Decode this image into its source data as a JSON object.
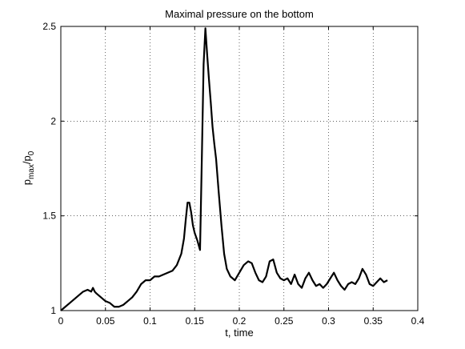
{
  "chart_data": {
    "type": "line",
    "title": "Maximal pressure on the bottom",
    "xlabel": "t, time",
    "ylabel": {
      "main": "p",
      "sub1": "max",
      "sep": "/p",
      "sub2": "0"
    },
    "xlim": [
      0,
      0.4
    ],
    "ylim": [
      1,
      2.5
    ],
    "xticks": [
      "0",
      "0.05",
      "0.1",
      "0.15",
      "0.2",
      "0.25",
      "0.3",
      "0.35",
      "0.4"
    ],
    "yticks": [
      "1",
      "1.5",
      "2",
      "2.5"
    ],
    "grid": true,
    "line_color": "#000000",
    "series": [
      {
        "x": [
          0,
          0.005,
          0.01,
          0.015,
          0.02,
          0.025,
          0.03,
          0.034,
          0.036,
          0.038,
          0.04,
          0.045,
          0.05,
          0.055,
          0.06,
          0.065,
          0.07,
          0.075,
          0.08,
          0.085,
          0.09,
          0.095,
          0.1,
          0.105,
          0.11,
          0.115,
          0.12,
          0.125,
          0.13,
          0.135,
          0.138,
          0.14,
          0.142,
          0.144,
          0.146,
          0.148,
          0.15,
          0.153,
          0.156,
          0.158,
          0.16,
          0.162,
          0.164,
          0.166,
          0.168,
          0.17,
          0.172,
          0.174,
          0.177,
          0.18,
          0.183,
          0.186,
          0.19,
          0.195,
          0.2,
          0.205,
          0.21,
          0.214,
          0.218,
          0.222,
          0.226,
          0.23,
          0.234,
          0.238,
          0.242,
          0.246,
          0.25,
          0.254,
          0.258,
          0.262,
          0.266,
          0.27,
          0.274,
          0.278,
          0.282,
          0.286,
          0.29,
          0.294,
          0.298,
          0.302,
          0.306,
          0.31,
          0.314,
          0.318,
          0.322,
          0.326,
          0.33,
          0.334,
          0.338,
          0.342,
          0.346,
          0.35,
          0.354,
          0.358,
          0.362,
          0.366
        ],
        "y": [
          1.0,
          1.02,
          1.04,
          1.06,
          1.08,
          1.1,
          1.11,
          1.1,
          1.12,
          1.1,
          1.09,
          1.07,
          1.05,
          1.04,
          1.02,
          1.02,
          1.03,
          1.05,
          1.07,
          1.1,
          1.14,
          1.16,
          1.16,
          1.18,
          1.18,
          1.19,
          1.2,
          1.21,
          1.24,
          1.3,
          1.38,
          1.48,
          1.57,
          1.57,
          1.52,
          1.45,
          1.41,
          1.37,
          1.32,
          1.8,
          2.3,
          2.49,
          2.35,
          2.22,
          2.1,
          1.97,
          1.88,
          1.8,
          1.62,
          1.45,
          1.3,
          1.22,
          1.18,
          1.16,
          1.2,
          1.24,
          1.26,
          1.25,
          1.2,
          1.16,
          1.15,
          1.18,
          1.26,
          1.27,
          1.2,
          1.17,
          1.16,
          1.17,
          1.14,
          1.19,
          1.14,
          1.12,
          1.17,
          1.2,
          1.16,
          1.13,
          1.14,
          1.12,
          1.14,
          1.17,
          1.2,
          1.16,
          1.13,
          1.11,
          1.14,
          1.15,
          1.14,
          1.17,
          1.22,
          1.19,
          1.14,
          1.13,
          1.15,
          1.17,
          1.15,
          1.16
        ]
      }
    ]
  }
}
